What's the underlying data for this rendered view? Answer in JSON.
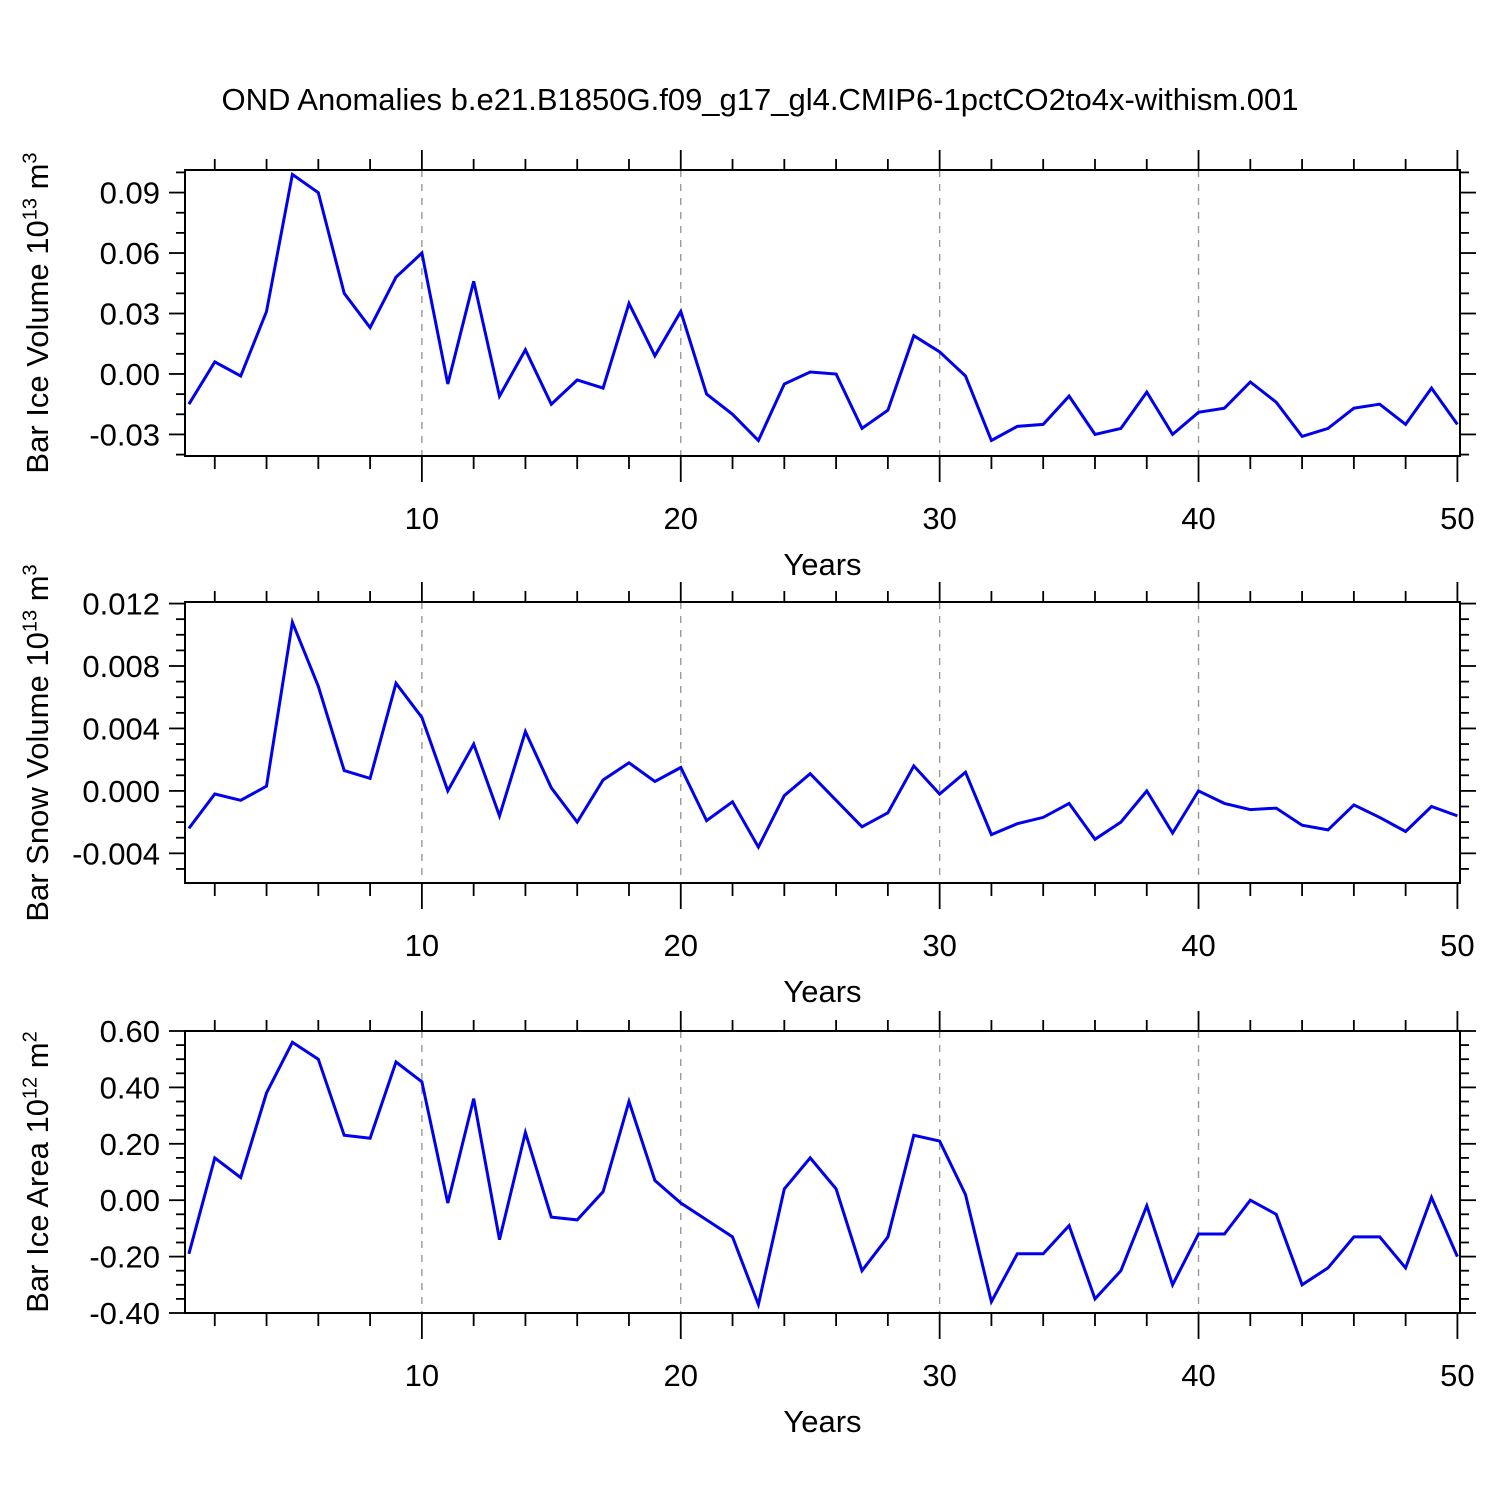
{
  "title": "OND Anomalies b.e21.B1850G.f09_g17_gl4.CMIP6-1pctCO2to4x-withism.001",
  "style": {
    "line_color": "#0000ee",
    "grid_color": "#999999",
    "axis_color": "#000000",
    "background": "#ffffff"
  },
  "chart_data": [
    {
      "type": "line",
      "xlabel": "Years",
      "ylabel_parts": {
        "base": "Bar Ice Volume 10",
        "exp": "13",
        "unit": " m",
        "unit_exp": "3"
      },
      "x_start": 1,
      "xlim": [
        0.85,
        50.1
      ],
      "ylim": [
        -0.0407,
        0.1012
      ],
      "x_major_ticks": [
        10,
        20,
        30,
        40,
        50
      ],
      "x_tick_labels": [
        "10",
        "20",
        "30",
        "40",
        "50"
      ],
      "x_minor_interval": 2,
      "y_major_ticks": [
        -0.03,
        0.0,
        0.03,
        0.06,
        0.09
      ],
      "y_tick_labels": [
        "-0.03",
        "0.00",
        "0.03",
        "0.06",
        "0.09"
      ],
      "y_minor_interval": 0.01,
      "x_gridlines": [
        10,
        20,
        30,
        40
      ],
      "grid_on": true,
      "legend": "none",
      "values": [
        -0.015,
        0.006,
        -0.001,
        0.031,
        0.099,
        0.09,
        0.04,
        0.023,
        0.048,
        0.06,
        -0.005,
        0.046,
        -0.011,
        0.012,
        -0.015,
        -0.003,
        -0.007,
        0.035,
        0.009,
        0.031,
        -0.01,
        -0.02,
        -0.033,
        -0.005,
        0.001,
        0.0,
        -0.027,
        -0.018,
        0.019,
        0.011,
        -0.001,
        -0.033,
        -0.026,
        -0.025,
        -0.011,
        -0.03,
        -0.027,
        -0.009,
        -0.03,
        -0.019,
        -0.017,
        -0.004,
        -0.014,
        -0.031,
        -0.027,
        -0.017,
        -0.015,
        -0.025,
        -0.007,
        -0.025
      ]
    },
    {
      "type": "line",
      "xlabel": "Years",
      "ylabel_parts": {
        "base": "Bar Snow Volume 10",
        "exp": "13",
        "unit": " m",
        "unit_exp": "3"
      },
      "x_start": 1,
      "xlim": [
        0.85,
        50.1
      ],
      "ylim": [
        -0.0059,
        0.0121
      ],
      "x_major_ticks": [
        10,
        20,
        30,
        40,
        50
      ],
      "x_tick_labels": [
        "10",
        "20",
        "30",
        "40",
        "50"
      ],
      "x_minor_interval": 2,
      "y_major_ticks": [
        -0.004,
        0.0,
        0.004,
        0.008,
        0.012
      ],
      "y_tick_labels": [
        "-0.004",
        "0.000",
        "0.004",
        "0.008",
        "0.012"
      ],
      "y_minor_interval": 0.001,
      "x_gridlines": [
        10,
        20,
        30,
        40
      ],
      "grid_on": true,
      "legend": "none",
      "values": [
        -0.0024,
        -0.0002,
        -0.0006,
        0.0003,
        0.0108,
        0.0067,
        0.0013,
        0.0008,
        0.0069,
        0.0047,
        0.0,
        0.003,
        -0.0016,
        0.0038,
        0.0002,
        -0.002,
        0.0007,
        0.0018,
        0.0006,
        0.0015,
        -0.0019,
        -0.0007,
        -0.0036,
        -0.0003,
        0.0011,
        -0.0006,
        -0.0023,
        -0.0014,
        0.0016,
        -0.0002,
        0.0012,
        -0.0028,
        -0.0021,
        -0.0017,
        -0.0008,
        -0.0031,
        -0.002,
        0.0,
        -0.0027,
        0.0,
        -0.0008,
        -0.0012,
        -0.0011,
        -0.0022,
        -0.0025,
        -0.0009,
        -0.0017,
        -0.0026,
        -0.001,
        -0.0016
      ]
    },
    {
      "type": "line",
      "xlabel": "Years",
      "ylabel_parts": {
        "base": "Bar Ice Area 10",
        "exp": "12",
        "unit": " m",
        "unit_exp": "2"
      },
      "x_start": 1,
      "xlim": [
        0.85,
        50.1
      ],
      "ylim": [
        -0.4,
        0.6
      ],
      "x_major_ticks": [
        10,
        20,
        30,
        40,
        50
      ],
      "x_tick_labels": [
        "10",
        "20",
        "30",
        "40",
        "50"
      ],
      "x_minor_interval": 2,
      "y_major_ticks": [
        -0.4,
        -0.2,
        0.0,
        0.2,
        0.4,
        0.6
      ],
      "y_tick_labels": [
        "-0.40",
        "-0.20",
        "0.00",
        "0.20",
        "0.40",
        "0.60"
      ],
      "y_minor_interval": 0.05,
      "x_gridlines": [
        10,
        20,
        30,
        40
      ],
      "grid_on": true,
      "legend": "none",
      "values": [
        -0.19,
        0.15,
        0.08,
        0.38,
        0.56,
        0.5,
        0.23,
        0.22,
        0.49,
        0.42,
        -0.01,
        0.36,
        -0.14,
        0.24,
        -0.06,
        -0.07,
        0.03,
        0.35,
        0.07,
        -0.01,
        -0.07,
        -0.13,
        -0.37,
        0.04,
        0.15,
        0.04,
        -0.25,
        -0.13,
        0.23,
        0.21,
        0.02,
        -0.36,
        -0.19,
        -0.19,
        -0.09,
        -0.35,
        -0.25,
        -0.02,
        -0.3,
        -0.12,
        -0.12,
        0.0,
        -0.05,
        -0.3,
        -0.24,
        -0.13,
        -0.13,
        -0.24,
        0.01,
        -0.2
      ]
    }
  ]
}
